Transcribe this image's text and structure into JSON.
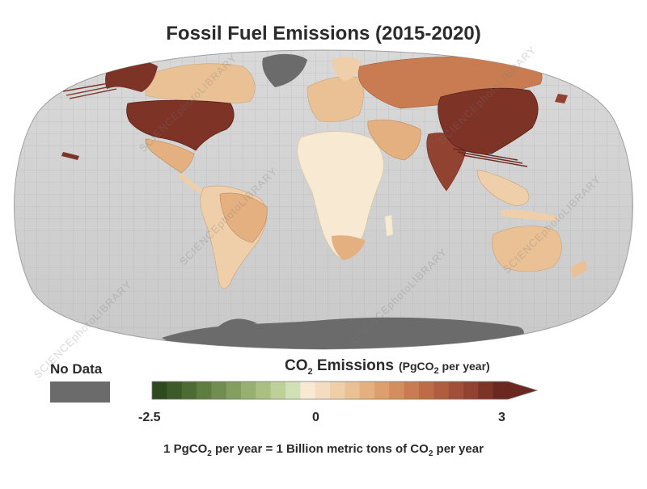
{
  "title": "Fossil Fuel Emissions (2015-2020)",
  "no_data": {
    "label": "No Data",
    "color": "#6b6b6b"
  },
  "legend": {
    "title_prefix": "CO",
    "title_sub": "2",
    "title_suffix": " Emissions",
    "unit_prefix": "(PgCO",
    "unit_sub": "2",
    "unit_suffix": " per year)",
    "min_label": "-2.5",
    "mid_label": "0",
    "max_label": "3",
    "range": [
      -2.5,
      3
    ],
    "colors": [
      "#2e4a1e",
      "#3d5a28",
      "#4e6b34",
      "#5f7c41",
      "#718d4f",
      "#849e5f",
      "#97af70",
      "#aac083",
      "#bdd098",
      "#d2e0b6",
      "#f7e9d2",
      "#f3dcc0",
      "#efcfaa",
      "#eac195",
      "#e4b07f",
      "#dd9f6d",
      "#d48e5e",
      "#c97c51",
      "#bd6c47",
      "#b05d3f",
      "#a14f38",
      "#914230",
      "#7e3327",
      "#6b2820"
    ]
  },
  "footnote": {
    "a": "1 PgCO",
    "a_sub": "2",
    "b": " per year = 1 Billion metric tons of CO",
    "b_sub": "2",
    "c": " per year"
  },
  "regions": [
    {
      "name": "North America (USA)",
      "level": "high",
      "color": "#7e3327"
    },
    {
      "name": "Canada",
      "level": "low",
      "color": "#eac195"
    },
    {
      "name": "Alaska",
      "level": "high",
      "color": "#7e3327"
    },
    {
      "name": "Greenland",
      "level": "no-data",
      "color": "#6b6b6b"
    },
    {
      "name": "Mexico / Central America",
      "level": "low",
      "color": "#e4b07f"
    },
    {
      "name": "South America",
      "level": "low",
      "color": "#efcfaa"
    },
    {
      "name": "Brazil",
      "level": "low",
      "color": "#e4b07f"
    },
    {
      "name": "Europe",
      "level": "low",
      "color": "#eac195"
    },
    {
      "name": "Russia",
      "level": "medium",
      "color": "#c97c51"
    },
    {
      "name": "Africa",
      "level": "very-low",
      "color": "#f7e9d2"
    },
    {
      "name": "South Africa",
      "level": "low",
      "color": "#e4b07f"
    },
    {
      "name": "Middle East",
      "level": "low",
      "color": "#e4b07f"
    },
    {
      "name": "India",
      "level": "high",
      "color": "#914230"
    },
    {
      "name": "China",
      "level": "very-high",
      "color": "#7e3327"
    },
    {
      "name": "Southeast Asia",
      "level": "low",
      "color": "#efcfaa"
    },
    {
      "name": "Australia",
      "level": "low",
      "color": "#eac195"
    },
    {
      "name": "Antarctica",
      "level": "no-data",
      "color": "#6b6b6b"
    }
  ],
  "watermark_text": "SCIENCEphotoLIBRARY"
}
